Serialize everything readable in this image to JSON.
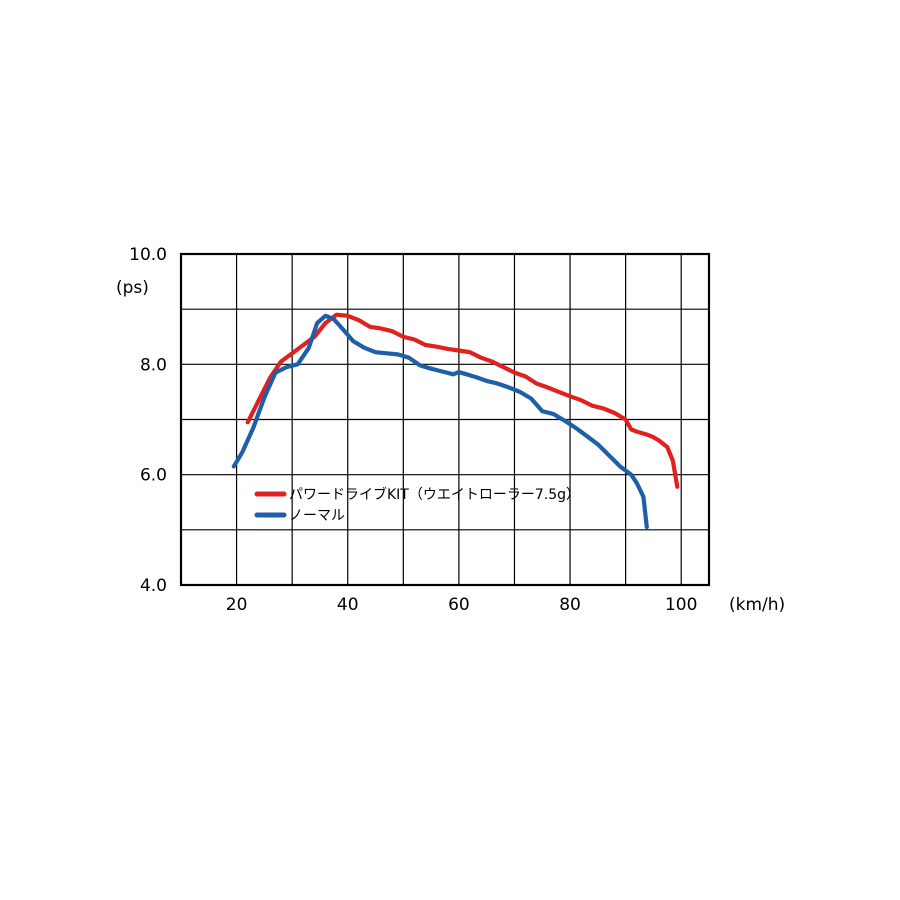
{
  "chart_data": {
    "type": "line",
    "title": "",
    "xlabel": "(km/h)",
    "ylabel": "(ps)",
    "xlim": [
      10,
      105
    ],
    "ylim": [
      4.0,
      10.0
    ],
    "x_ticks": [
      20,
      40,
      60,
      80,
      100
    ],
    "x_tick_labels": [
      "20",
      "40",
      "60",
      "80",
      "100"
    ],
    "y_ticks": [
      4.0,
      6.0,
      8.0,
      10.0
    ],
    "y_tick_labels": [
      "4.0",
      "6.0",
      "8.0",
      "10.0"
    ],
    "grid": true,
    "legend_position": "lower-left",
    "series": [
      {
        "name": "パワードライブKIT（ウエイトローラー7.5g）",
        "color": "#e0211d",
        "points": [
          [
            22,
            6.95
          ],
          [
            24,
            7.35
          ],
          [
            26,
            7.75
          ],
          [
            28,
            8.05
          ],
          [
            30,
            8.2
          ],
          [
            32,
            8.35
          ],
          [
            34,
            8.5
          ],
          [
            36,
            8.75
          ],
          [
            38,
            8.9
          ],
          [
            40,
            8.88
          ],
          [
            42,
            8.8
          ],
          [
            44,
            8.68
          ],
          [
            46,
            8.65
          ],
          [
            48,
            8.6
          ],
          [
            50,
            8.5
          ],
          [
            52,
            8.45
          ],
          [
            54,
            8.35
          ],
          [
            56,
            8.32
          ],
          [
            58,
            8.28
          ],
          [
            60,
            8.25
          ],
          [
            62,
            8.22
          ],
          [
            64,
            8.12
          ],
          [
            66,
            8.05
          ],
          [
            68,
            7.95
          ],
          [
            70,
            7.85
          ],
          [
            72,
            7.78
          ],
          [
            74,
            7.65
          ],
          [
            76,
            7.58
          ],
          [
            78,
            7.5
          ],
          [
            80,
            7.42
          ],
          [
            82,
            7.35
          ],
          [
            84,
            7.25
          ],
          [
            86,
            7.2
          ],
          [
            88,
            7.12
          ],
          [
            90,
            7.0
          ],
          [
            91,
            6.82
          ],
          [
            92,
            6.78
          ],
          [
            94,
            6.72
          ],
          [
            95,
            6.68
          ],
          [
            96,
            6.62
          ],
          [
            97.5,
            6.5
          ],
          [
            98.5,
            6.25
          ],
          [
            99.3,
            5.78
          ]
        ]
      },
      {
        "name": "ノーマル",
        "color": "#1f5fa8",
        "points": [
          [
            19.5,
            6.15
          ],
          [
            21,
            6.4
          ],
          [
            23,
            6.85
          ],
          [
            25,
            7.4
          ],
          [
            27,
            7.85
          ],
          [
            29,
            7.95
          ],
          [
            31,
            8.0
          ],
          [
            33,
            8.3
          ],
          [
            34.5,
            8.75
          ],
          [
            36,
            8.88
          ],
          [
            37.5,
            8.82
          ],
          [
            39,
            8.65
          ],
          [
            41,
            8.42
          ],
          [
            43,
            8.3
          ],
          [
            45,
            8.22
          ],
          [
            47,
            8.2
          ],
          [
            49,
            8.18
          ],
          [
            51,
            8.12
          ],
          [
            53,
            7.98
          ],
          [
            55,
            7.92
          ],
          [
            57,
            7.87
          ],
          [
            59,
            7.82
          ],
          [
            60,
            7.86
          ],
          [
            61,
            7.83
          ],
          [
            63,
            7.77
          ],
          [
            65,
            7.7
          ],
          [
            67,
            7.65
          ],
          [
            69,
            7.58
          ],
          [
            71,
            7.5
          ],
          [
            73,
            7.38
          ],
          [
            75,
            7.15
          ],
          [
            77,
            7.1
          ],
          [
            79,
            6.98
          ],
          [
            81,
            6.85
          ],
          [
            83,
            6.7
          ],
          [
            85,
            6.55
          ],
          [
            87,
            6.35
          ],
          [
            89,
            6.15
          ],
          [
            91,
            6.0
          ],
          [
            92,
            5.85
          ],
          [
            93.2,
            5.6
          ],
          [
            93.8,
            5.05
          ]
        ]
      }
    ],
    "legend": [
      {
        "label": "パワードライブKIT（ウエイトローラー7.5g）"
      },
      {
        "label": "ノーマル"
      }
    ]
  }
}
